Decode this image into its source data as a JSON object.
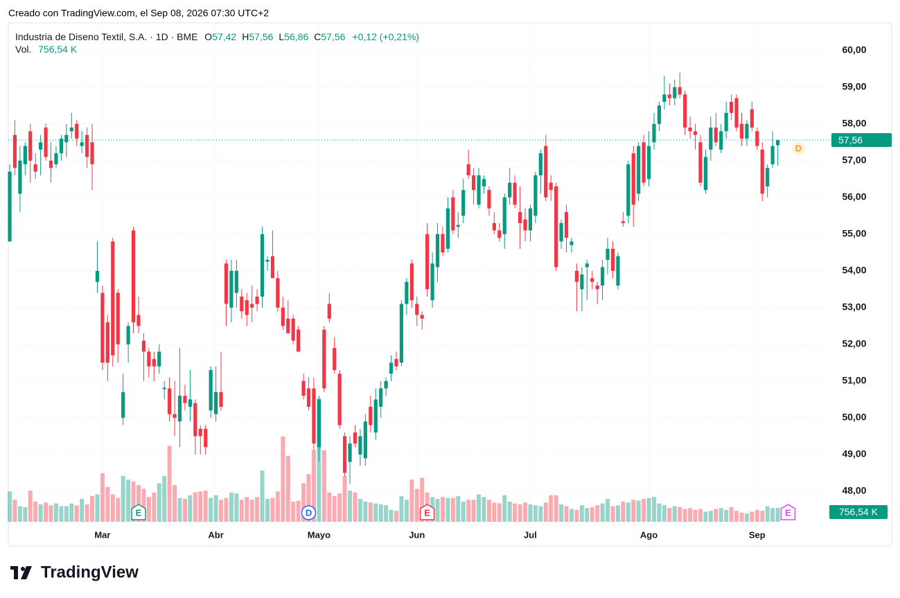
{
  "chart_data": {
    "type": "candlestick",
    "credit": "Creado con TradingView.com, el Sep 08, 2026 07:30 UTC+2",
    "title": "Industria de Diseno Textil, S.A. · 1D · BME",
    "legend": [
      {
        "label": "O",
        "value": "57,42"
      },
      {
        "label": "H",
        "value": "57,56"
      },
      {
        "label": "L",
        "value": "56,86"
      },
      {
        "label": "C",
        "value": "57,56"
      }
    ],
    "change": "+0,12 (+0,21%)",
    "volume_label": "Vol.",
    "volume_value": "756,54 K",
    "last_price": {
      "value": 57.56,
      "label": "57,56"
    },
    "brand": "TradingView",
    "up_color": "#089981",
    "down_color": "#f23645",
    "grid": true,
    "ylim": [
      47.17,
      60.75
    ],
    "yticks": [
      {
        "value": 48,
        "label": "48,00"
      },
      {
        "value": 49,
        "label": "49,00"
      },
      {
        "value": 50,
        "label": "50,00"
      },
      {
        "value": 51,
        "label": "51,00"
      },
      {
        "value": 52,
        "label": "52,00"
      },
      {
        "value": 53,
        "label": "53,00"
      },
      {
        "value": 54,
        "label": "54,00"
      },
      {
        "value": 55,
        "label": "55,00"
      },
      {
        "value": 56,
        "label": "56,00"
      },
      {
        "value": 57,
        "label": "57,00"
      },
      {
        "value": 58,
        "label": "58,00"
      },
      {
        "value": 59,
        "label": "59,00"
      },
      {
        "value": 60,
        "label": "60,00"
      }
    ],
    "categories": [
      null,
      null,
      null,
      null,
      null,
      null,
      null,
      null,
      null,
      null,
      null,
      null,
      null,
      null,
      null,
      null,
      null,
      null,
      "Mar",
      null,
      null,
      null,
      null,
      null,
      null,
      null,
      null,
      null,
      null,
      null,
      null,
      null,
      null,
      null,
      null,
      null,
      null,
      null,
      null,
      null,
      "Abr",
      null,
      null,
      null,
      null,
      null,
      null,
      null,
      null,
      null,
      null,
      null,
      null,
      null,
      null,
      null,
      null,
      null,
      null,
      null,
      "Mayo",
      null,
      null,
      null,
      null,
      null,
      null,
      null,
      null,
      null,
      null,
      null,
      null,
      null,
      null,
      null,
      null,
      null,
      null,
      "Jun",
      null,
      null,
      null,
      null,
      null,
      null,
      null,
      null,
      null,
      null,
      null,
      null,
      null,
      null,
      null,
      null,
      null,
      null,
      null,
      null,
      null,
      "Jul",
      null,
      null,
      null,
      null,
      null,
      null,
      null,
      null,
      null,
      null,
      null,
      null,
      null,
      null,
      null,
      null,
      null,
      null,
      null,
      null,
      null,
      null,
      "Ago",
      null,
      null,
      null,
      null,
      null,
      null,
      null,
      null,
      null,
      null,
      null,
      null,
      null,
      null,
      null,
      null,
      null,
      null,
      null,
      null,
      "Sep",
      null,
      null,
      null,
      null
    ],
    "open": [
      54.8,
      57.7,
      56.1,
      56.9,
      57.8,
      56.9,
      57.3,
      57.9,
      57.0,
      56.9,
      57.2,
      57.5,
      57.8,
      58.0,
      57.4,
      57.7,
      57.5,
      53.7,
      53.4,
      52.6,
      54.8,
      53.4,
      50.0,
      52.0,
      55.1,
      52.8,
      52.1,
      51.8,
      51.6,
      51.4,
      50.78,
      50.8,
      50.1,
      49.9,
      50.6,
      50.3,
      50.4,
      49.7,
      49.7,
      50.2,
      50.1,
      50.7,
      54.2,
      53.0,
      53.4,
      53.3,
      53.2,
      53.1,
      53.3,
      53.3,
      54.25,
      54.4,
      53.8,
      53.0,
      52.7,
      52.7,
      52.4,
      51.0,
      50.8,
      50.8,
      49.2,
      52.4,
      53.1,
      51.9,
      51.2,
      49.5,
      48.8,
      49.6,
      49.0,
      48.9,
      50.3,
      49.6,
      50.3,
      50.8,
      51.2,
      51.6,
      51.5,
      53.1,
      54.2,
      53.1,
      52.8,
      55.0,
      53.2,
      54.1,
      55.0,
      54.6,
      56.0,
      55.2,
      55.5,
      56.9,
      56.6,
      55.8,
      56.3,
      56.2,
      55.3,
      55.1,
      55.0,
      56.0,
      56.4,
      55.6,
      55.4,
      55.1,
      55.5,
      56.6,
      57.4,
      56.4,
      56.3,
      54.8,
      55.6,
      54.7,
      54.0,
      53.5,
      54.1,
      53.8,
      53.6,
      53.6,
      54.3,
      54.6,
      53.6,
      55.35,
      55.5,
      57.2,
      56.1,
      57.5,
      56.5,
      57.5,
      58.0,
      58.6,
      58.8,
      58.7,
      59.0,
      58.8,
      57.9,
      57.8,
      57.5,
      56.2,
      57.3,
      57.9,
      57.3,
      57.8,
      58.6,
      58.7,
      58.0,
      57.6,
      58.4,
      57.8,
      57.3,
      56.3,
      56.9,
      57.42
    ],
    "high": [
      56.9,
      58.1,
      57.4,
      57.5,
      58.0,
      57.2,
      57.7,
      58.0,
      57.5,
      57.4,
      57.7,
      58.0,
      58.3,
      58.1,
      57.8,
      57.9,
      58.0,
      54.8,
      53.6,
      52.8,
      54.9,
      53.5,
      51.2,
      52.6,
      55.2,
      53.3,
      52.3,
      51.9,
      51.8,
      52.0,
      51.0,
      51.1,
      51.0,
      51.9,
      50.9,
      51.3,
      50.5,
      49.8,
      49.8,
      51.4,
      51.4,
      51.8,
      54.3,
      54.3,
      54.3,
      53.5,
      53.4,
      53.6,
      53.5,
      55.2,
      54.4,
      55.1,
      54.0,
      53.3,
      53.2,
      52.8,
      52.5,
      51.2,
      51.1,
      51.1,
      50.6,
      52.5,
      53.4,
      52.2,
      51.3,
      49.6,
      49.5,
      49.8,
      49.7,
      50.1,
      50.6,
      50.8,
      51.0,
      51.1,
      51.7,
      51.8,
      53.2,
      53.8,
      54.3,
      53.3,
      52.9,
      55.3,
      54.5,
      55.3,
      55.2,
      56.0,
      56.2,
      55.6,
      56.5,
      57.3,
      56.8,
      56.8,
      56.6,
      56.3,
      55.6,
      55.3,
      56.1,
      56.8,
      56.6,
      56.3,
      55.7,
      55.8,
      56.7,
      57.3,
      57.7,
      56.6,
      56.4,
      55.4,
      55.8,
      54.9,
      54.2,
      54.1,
      54.3,
      54.0,
      53.7,
      54.3,
      54.9,
      54.8,
      54.5,
      55.6,
      57.0,
      57.4,
      57.5,
      57.7,
      57.8,
      58.3,
      58.6,
      59.3,
      59.1,
      59.2,
      59.4,
      58.9,
      58.2,
      58.0,
      57.7,
      57.3,
      58.2,
      58.3,
      58.0,
      58.6,
      58.8,
      58.8,
      58.3,
      58.1,
      58.6,
      57.9,
      57.5,
      56.9,
      57.8,
      57.56
    ],
    "low": [
      54.8,
      56.6,
      55.6,
      56.6,
      56.4,
      56.5,
      56.6,
      57.0,
      56.4,
      56.8,
      57.0,
      57.1,
      57.6,
      57.4,
      57.2,
      56.8,
      56.2,
      53.4,
      51.3,
      51.0,
      51.4,
      51.5,
      49.8,
      51.5,
      52.3,
      52.3,
      51.0,
      51.1,
      51.0,
      51.2,
      50.5,
      49.9,
      49.5,
      49.2,
      50.2,
      49.9,
      49.0,
      49.0,
      49.0,
      50.0,
      49.9,
      50.2,
      52.5,
      52.6,
      53.0,
      52.7,
      52.5,
      52.6,
      52.9,
      53.0,
      54.0,
      53.8,
      52.9,
      52.4,
      52.3,
      52.0,
      51.8,
      50.5,
      50.2,
      49.1,
      48.8,
      50.7,
      52.6,
      51.2,
      49.7,
      48.4,
      48.2,
      49.2,
      48.7,
      48.7,
      49.6,
      49.4,
      50.0,
      50.6,
      51.0,
      51.3,
      51.4,
      52.8,
      53.0,
      52.5,
      52.4,
      53.3,
      53.0,
      53.7,
      54.4,
      54.5,
      55.0,
      54.9,
      55.3,
      56.5,
      55.8,
      55.7,
      56.1,
      55.5,
      55.0,
      54.8,
      54.6,
      55.8,
      55.7,
      54.6,
      54.8,
      54.8,
      55.3,
      56.1,
      55.9,
      55.9,
      54.0,
      54.6,
      54.5,
      54.5,
      52.9,
      52.9,
      53.2,
      53.5,
      53.1,
      53.2,
      53.9,
      53.8,
      53.5,
      55.2,
      55.3,
      55.2,
      55.9,
      56.3,
      56.3,
      57.3,
      57.8,
      58.4,
      58.5,
      58.5,
      58.7,
      57.7,
      57.6,
      57.3,
      56.3,
      56.1,
      57.0,
      57.4,
      57.2,
      57.6,
      58.1,
      57.8,
      57.4,
      57.4,
      57.8,
      57.3,
      55.9,
      56.0,
      56.8,
      56.86
    ],
    "close": [
      56.7,
      56.8,
      57.0,
      57.4,
      57.0,
      56.7,
      57.5,
      57.1,
      56.8,
      57.2,
      57.6,
      57.7,
      57.9,
      57.6,
      57.5,
      57.1,
      56.9,
      54.0,
      51.5,
      51.5,
      51.7,
      52.0,
      50.7,
      52.5,
      52.6,
      52.5,
      51.8,
      51.4,
      51.4,
      51.8,
      50.82,
      50.1,
      50.0,
      50.6,
      50.4,
      50.5,
      49.5,
      49.5,
      49.2,
      51.3,
      50.7,
      50.3,
      53.1,
      54.0,
      54.0,
      52.9,
      52.8,
      53.0,
      53.1,
      55.0,
      54.3,
      53.8,
      53.0,
      52.5,
      52.3,
      52.1,
      51.8,
      50.6,
      50.3,
      49.3,
      50.5,
      50.8,
      52.7,
      51.3,
      49.8,
      48.5,
      49.3,
      49.3,
      49.5,
      49.9,
      49.8,
      50.5,
      50.8,
      51.0,
      51.5,
      51.4,
      53.1,
      53.7,
      53.2,
      52.8,
      52.7,
      53.5,
      54.2,
      55.0,
      54.5,
      55.7,
      55.1,
      55.25,
      56.2,
      56.6,
      56.2,
      56.6,
      56.5,
      55.7,
      55.1,
      54.9,
      56.0,
      56.4,
      55.8,
      55.3,
      55.1,
      55.7,
      56.6,
      57.2,
      56.0,
      56.2,
      54.1,
      55.3,
      54.9,
      54.8,
      53.7,
      53.9,
      54.2,
      53.7,
      53.5,
      54.1,
      54.6,
      54.0,
      54.4,
      55.3,
      56.9,
      55.8,
      57.4,
      56.4,
      57.4,
      58.0,
      58.5,
      58.8,
      58.7,
      59.0,
      58.8,
      57.9,
      57.8,
      57.7,
      56.4,
      57.1,
      57.9,
      57.5,
      57.8,
      58.3,
      58.3,
      57.9,
      57.6,
      58.0,
      57.9,
      57.4,
      56.1,
      56.8,
      57.4,
      57.56
    ],
    "volume": [
      1650,
      1200,
      850,
      800,
      1700,
      1100,
      950,
      1050,
      900,
      1000,
      850,
      850,
      1000,
      900,
      1250,
      950,
      1400,
      1500,
      2650,
      1900,
      1500,
      1300,
      2500,
      2300,
      2200,
      2000,
      1800,
      1350,
      1600,
      2100,
      2500,
      4150,
      2000,
      1300,
      1250,
      1450,
      1600,
      1650,
      1700,
      1300,
      1450,
      1200,
      1300,
      1600,
      1550,
      1200,
      1350,
      1200,
      1350,
      2800,
      1250,
      1300,
      1650,
      4650,
      3600,
      1100,
      1150,
      2100,
      2600,
      3900,
      6730,
      3900,
      1600,
      1400,
      1550,
      2500,
      1700,
      1600,
      1250,
      1100,
      1050,
      1000,
      950,
      900,
      650,
      600,
      1400,
      1200,
      2300,
      1800,
      2400,
      1600,
      1350,
      1250,
      1350,
      1300,
      1300,
      1400,
      1100,
      1200,
      1200,
      1500,
      1350,
      1200,
      1050,
      1000,
      1450,
      1100,
      1000,
      950,
      1050,
      950,
      900,
      850,
      1050,
      1450,
      1450,
      950,
      850,
      700,
      650,
      900,
      750,
      800,
      900,
      1000,
      1250,
      850,
      900,
      1100,
      1050,
      1200,
      1150,
      1250,
      1300,
      1350,
      1000,
      900,
      750,
      850,
      800,
      700,
      750,
      650,
      700,
      550,
      600,
      700,
      750,
      650,
      800,
      600,
      500,
      450,
      550,
      650,
      600,
      850,
      750,
      756.54
    ],
    "events": [
      {
        "label": "E",
        "at": 25,
        "color": "#089981"
      },
      {
        "label": "D",
        "at": 58,
        "color": "#2962ff"
      },
      {
        "label": "E",
        "at": 81,
        "color": "#f23645"
      },
      {
        "label": "E",
        "at": 151,
        "color": "#e040fb"
      },
      {
        "label": "D",
        "at": 153,
        "color": "#ff9800"
      }
    ]
  }
}
